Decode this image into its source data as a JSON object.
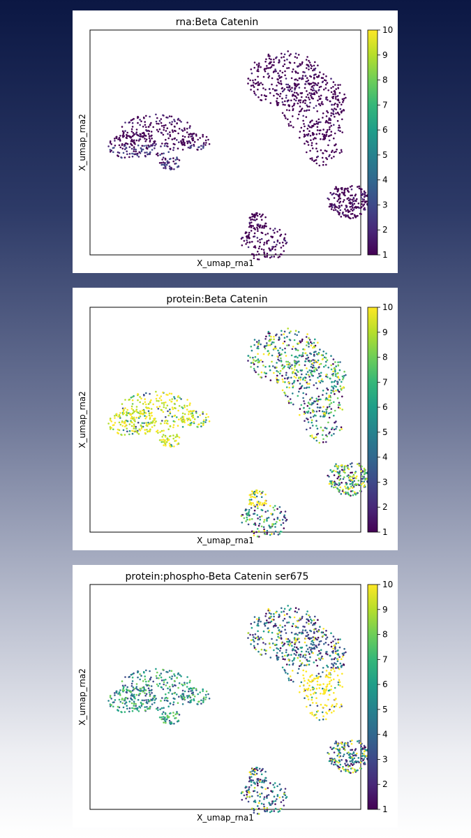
{
  "colorscale": [
    "#440154",
    "#482878",
    "#3e4989",
    "#31688e",
    "#26828e",
    "#1f9e89",
    "#35b779",
    "#6ece58",
    "#b5de2b",
    "#fde725"
  ],
  "chart_data": [
    {
      "type": "scatter",
      "title": "rna:Beta Catenin",
      "xlabel": "X_umap_rna1",
      "ylabel": "X_umap_rna2",
      "colorbar": {
        "min": 1,
        "max": 10,
        "ticks": [
          "1",
          "2",
          "3",
          "4",
          "5",
          "6",
          "7",
          "8",
          "9",
          "10"
        ]
      },
      "pattern": "rna"
    },
    {
      "type": "scatter",
      "title": "protein:Beta Catenin",
      "xlabel": "X_umap_rna1",
      "ylabel": "X_umap_rna2",
      "colorbar": {
        "min": 1,
        "max": 10,
        "ticks": [
          "1",
          "2",
          "3",
          "4",
          "5",
          "6",
          "7",
          "8",
          "9",
          "10"
        ]
      },
      "pattern": "protein"
    },
    {
      "type": "scatter",
      "title": "protein:phospho-Beta Catenin ser675",
      "xlabel": "X_umap_rna1",
      "ylabel": "X_umap_rna2",
      "colorbar": {
        "min": 1,
        "max": 10,
        "ticks": [
          "1",
          "2",
          "3",
          "4",
          "5",
          "6",
          "7",
          "8",
          "9",
          "10"
        ]
      },
      "pattern": "phospho"
    }
  ]
}
